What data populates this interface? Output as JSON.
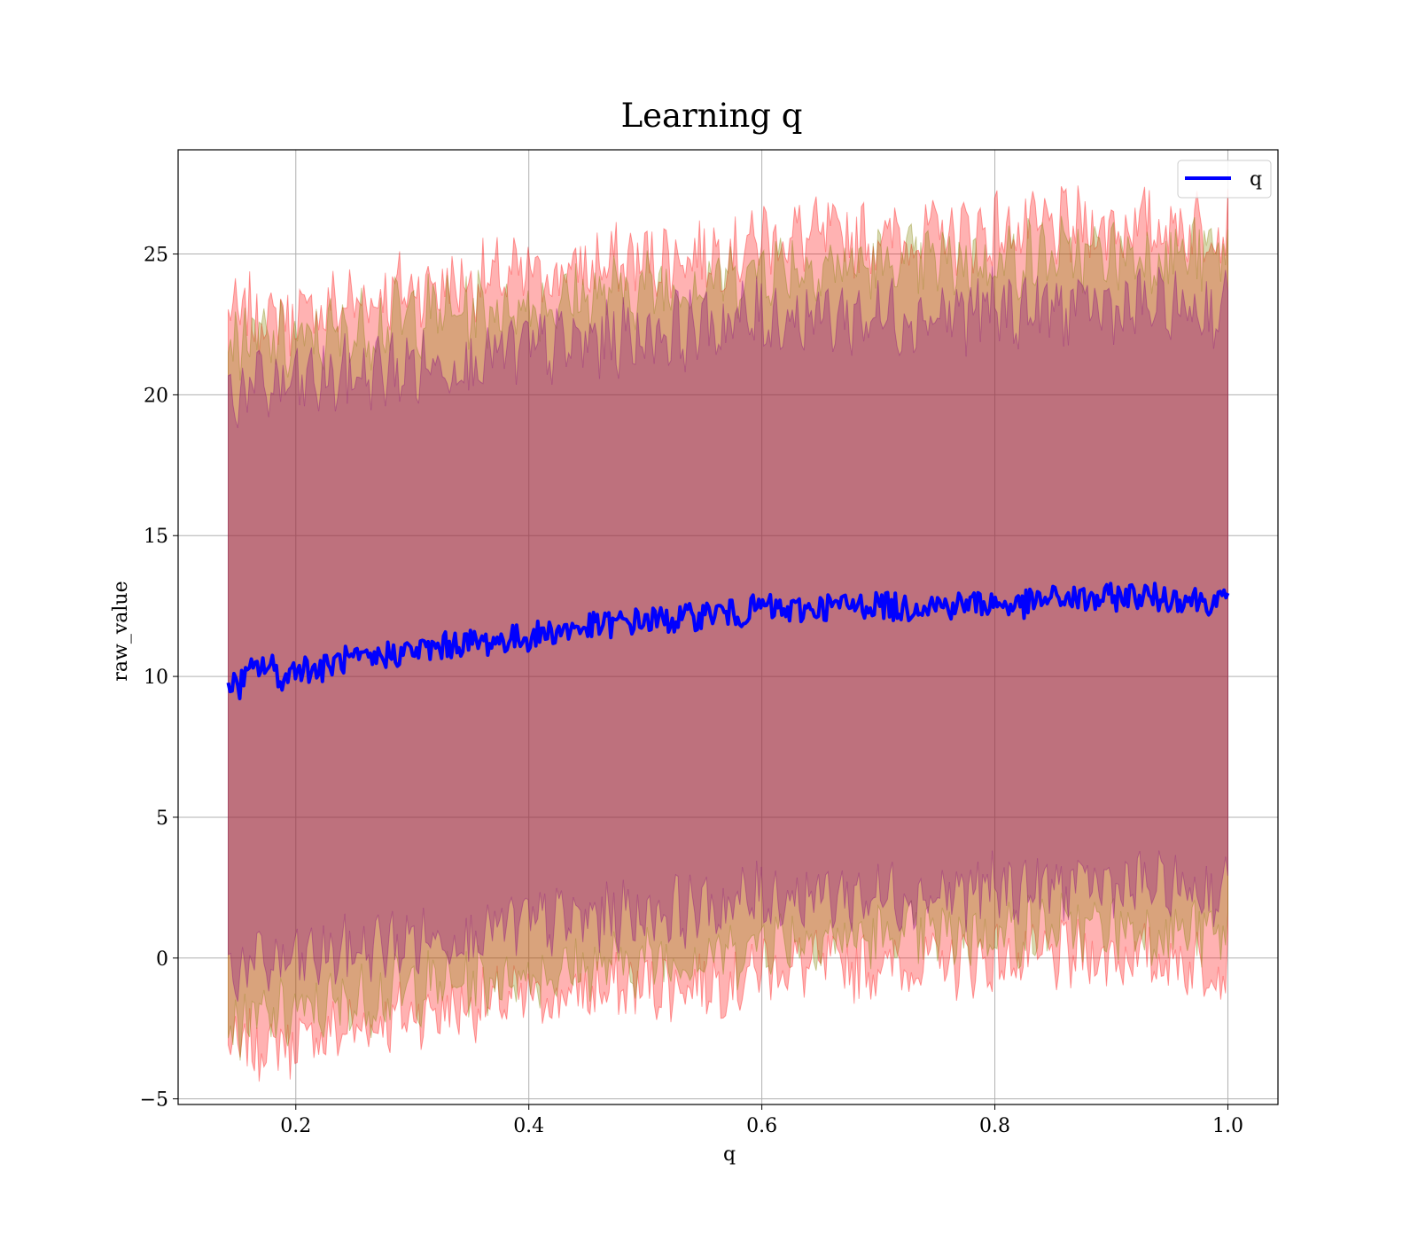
{
  "chart_data": {
    "type": "line",
    "title": "Learning q",
    "xlabel": "q",
    "ylabel": "raw_value",
    "xlim": [
      0.099,
      1.043
    ],
    "ylim": [
      -5.2,
      28.7
    ],
    "x_ticks": [
      0.2,
      0.4,
      0.6,
      0.8,
      1.0
    ],
    "x_tick_labels": [
      "0.2",
      "0.4",
      "0.6",
      "0.8",
      "1.0"
    ],
    "y_ticks": [
      -5,
      0,
      5,
      10,
      15,
      20,
      25
    ],
    "y_tick_labels": [
      "−5",
      "0",
      "5",
      "10",
      "15",
      "20",
      "25"
    ],
    "grid": true,
    "legend": {
      "position": "top-right",
      "entries": [
        "q"
      ]
    },
    "series": [
      {
        "name": "q",
        "color": "#0000ff",
        "x": [
          0.142,
          0.15,
          0.16,
          0.17,
          0.18,
          0.19,
          0.2,
          0.22,
          0.24,
          0.26,
          0.28,
          0.3,
          0.32,
          0.34,
          0.36,
          0.38,
          0.4,
          0.42,
          0.44,
          0.46,
          0.48,
          0.5,
          0.52,
          0.54,
          0.56,
          0.58,
          0.6,
          0.62,
          0.64,
          0.66,
          0.68,
          0.7,
          0.72,
          0.74,
          0.76,
          0.78,
          0.8,
          0.82,
          0.84,
          0.86,
          0.88,
          0.9,
          0.92,
          0.94,
          0.96,
          0.98,
          1.0
        ],
        "y": [
          9.9,
          9.6,
          10.1,
          10.4,
          10.3,
          9.8,
          10.4,
          10.2,
          10.6,
          10.5,
          10.8,
          10.9,
          11.0,
          11.2,
          11.2,
          11.3,
          11.4,
          11.6,
          11.7,
          11.8,
          11.9,
          12.0,
          12.0,
          12.1,
          12.3,
          12.2,
          12.5,
          12.3,
          12.4,
          12.5,
          12.5,
          12.6,
          12.4,
          12.6,
          12.5,
          12.6,
          12.6,
          12.5,
          12.7,
          12.8,
          12.7,
          12.8,
          12.9,
          12.8,
          12.8,
          12.7,
          12.6
        ]
      }
    ],
    "bands": [
      {
        "name": "",
        "color": "#ff0000",
        "opacity": 0.3,
        "x": [
          0.142,
          0.2,
          0.3,
          0.4,
          0.5,
          0.58,
          0.6,
          0.7,
          0.8,
          0.9,
          1.0
        ],
        "upper": [
          22.8,
          22.8,
          23.8,
          24.2,
          24.8,
          25.2,
          25.6,
          25.6,
          25.8,
          26.0,
          26.0
        ],
        "lower": [
          -3.3,
          -3.0,
          -2.0,
          -1.5,
          -1.0,
          -0.8,
          -0.3,
          -0.3,
          -0.1,
          0.1,
          -0.3
        ]
      },
      {
        "name": "",
        "color": "#808000",
        "opacity": 0.3,
        "x": [
          0.142,
          0.2,
          0.3,
          0.4,
          0.5,
          0.58,
          0.6,
          0.7,
          0.8,
          0.9,
          1.0
        ],
        "upper": [
          22.0,
          21.8,
          22.8,
          23.2,
          23.8,
          24.2,
          24.6,
          24.6,
          24.8,
          25.0,
          25.0
        ],
        "lower": [
          -2.4,
          -2.0,
          -1.1,
          -0.6,
          -0.1,
          0.2,
          0.7,
          0.7,
          0.9,
          1.1,
          0.8
        ]
      },
      {
        "name": "",
        "color": "#800080",
        "opacity": 0.3,
        "x": [
          0.142,
          0.2,
          0.3,
          0.4,
          0.5,
          0.58,
          0.6,
          0.7,
          0.8,
          0.9,
          1.0
        ],
        "upper": [
          20.1,
          20.4,
          21.0,
          21.6,
          22.2,
          22.6,
          22.8,
          22.8,
          23.0,
          23.1,
          23.0
        ],
        "lower": [
          -0.4,
          -0.1,
          0.6,
          1.2,
          1.6,
          1.9,
          2.2,
          2.2,
          2.4,
          2.6,
          2.3
        ]
      }
    ]
  }
}
